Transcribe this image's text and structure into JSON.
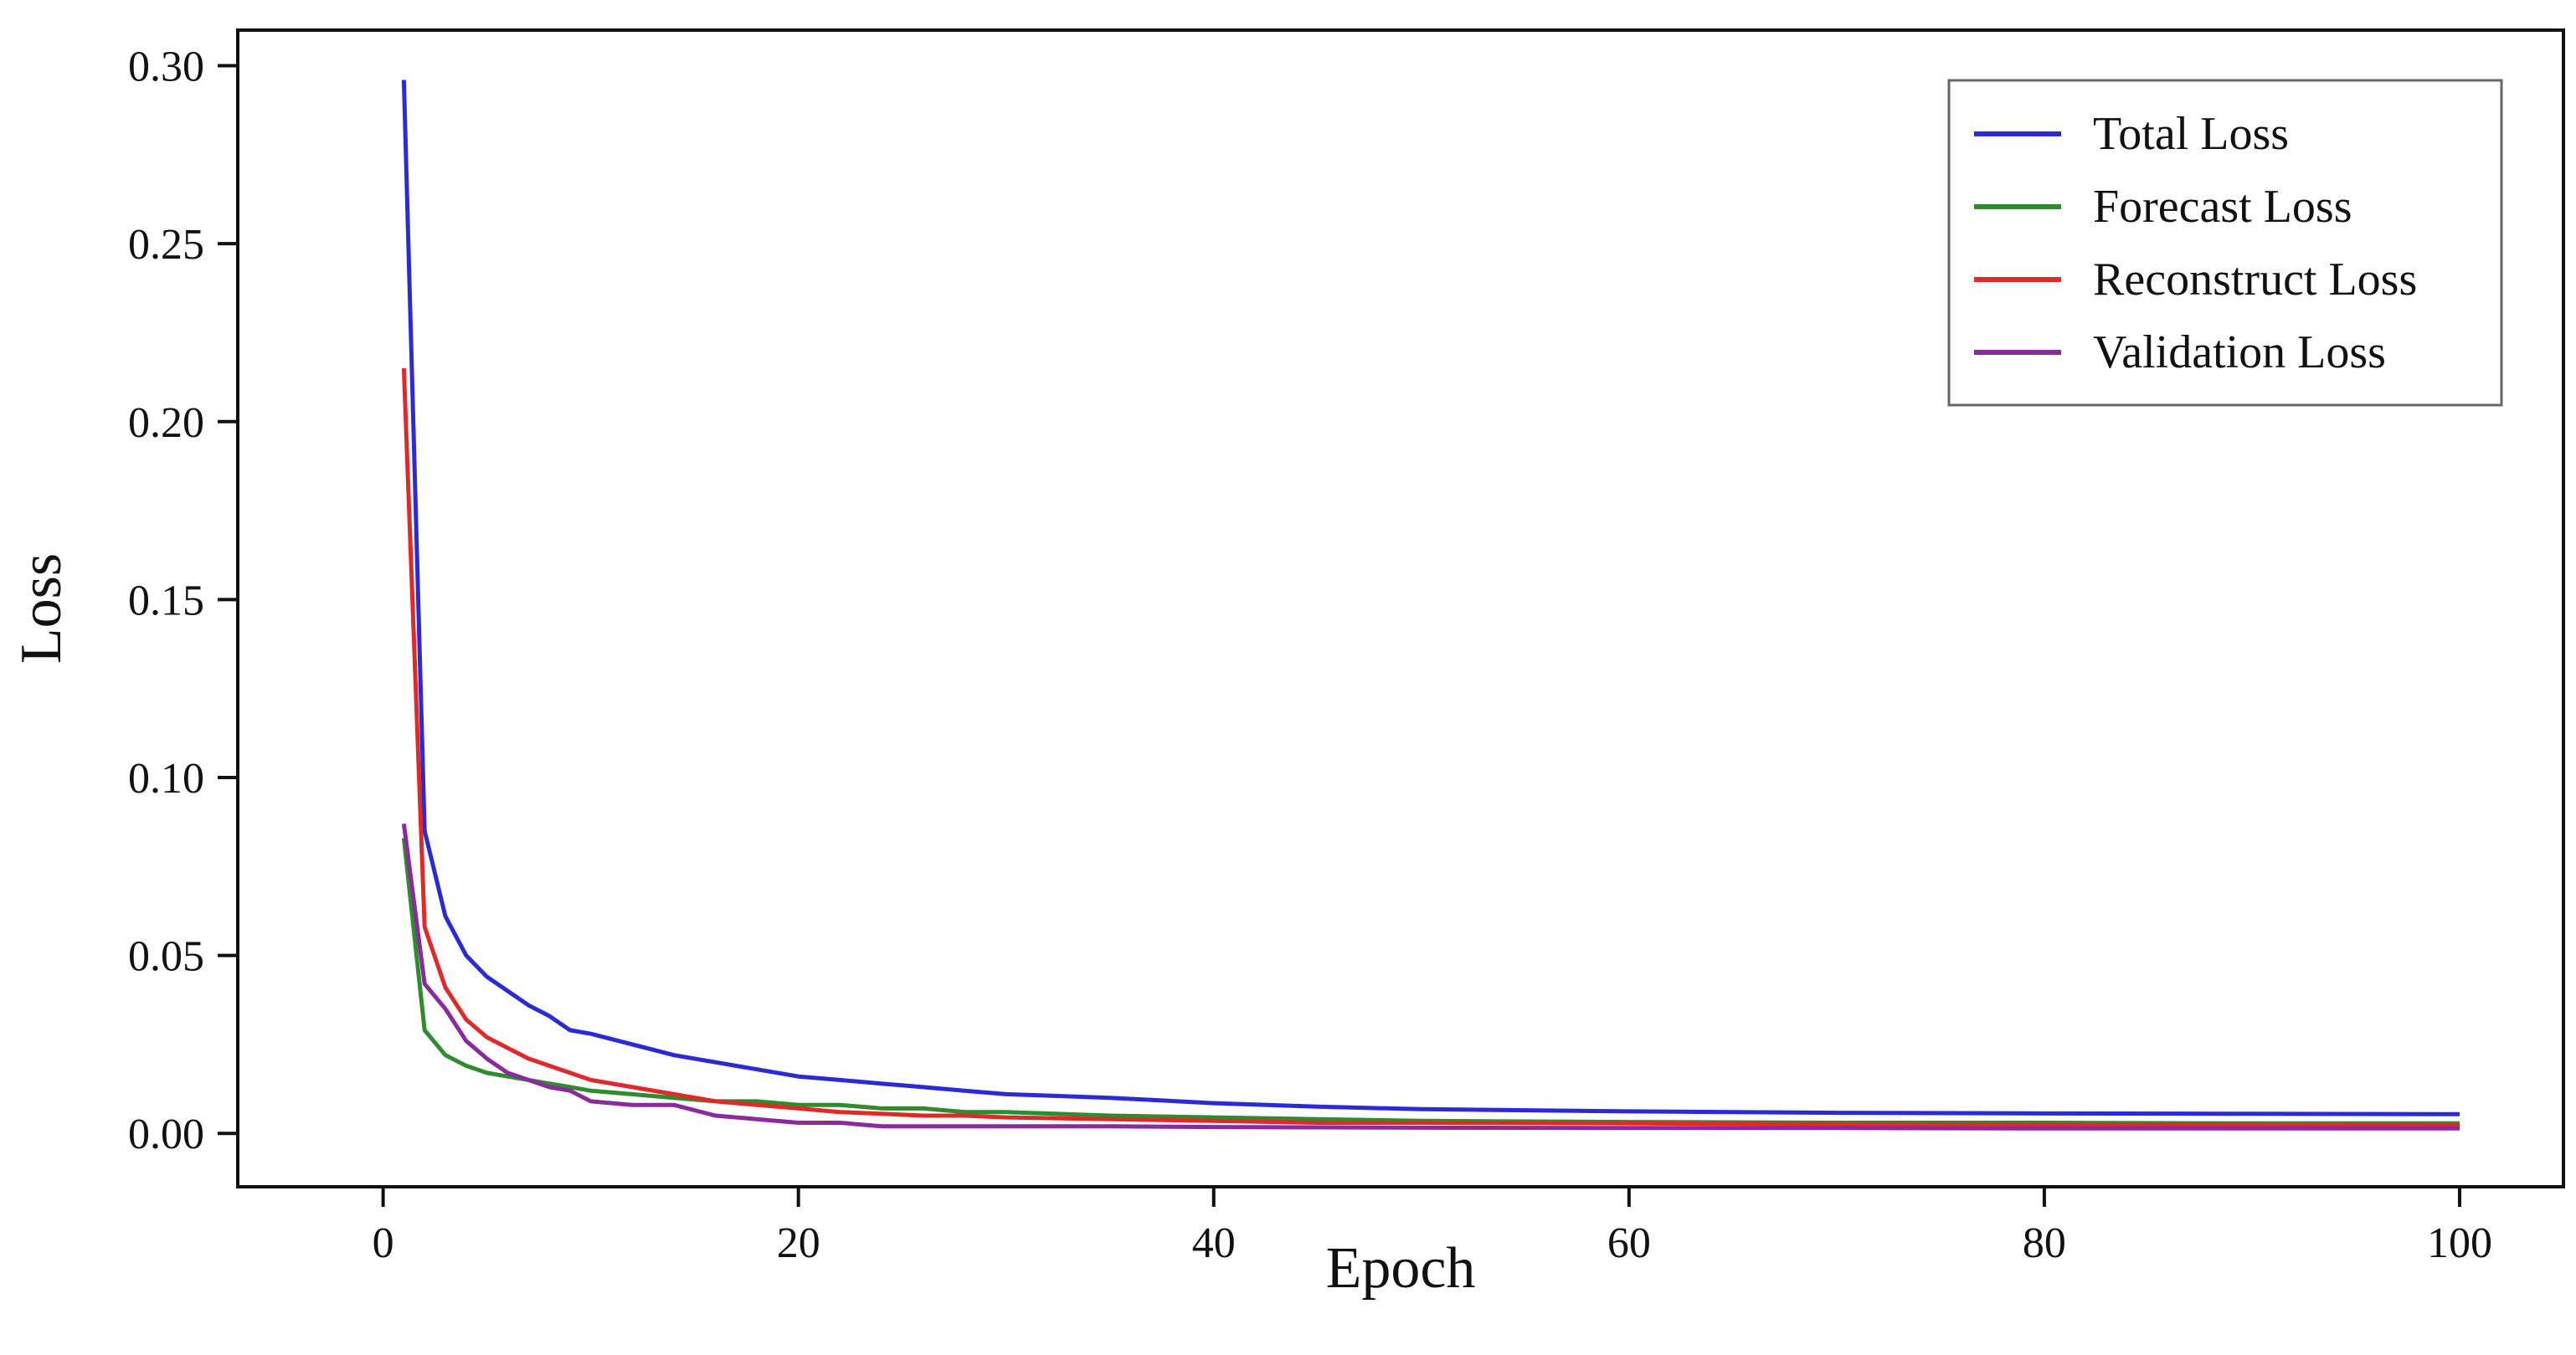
{
  "chart_data": {
    "type": "line",
    "xlabel": "Epoch",
    "ylabel": "Loss",
    "xlim": [
      -7,
      105
    ],
    "ylim": [
      -0.015,
      0.31
    ],
    "xticks": [
      0,
      20,
      40,
      60,
      80,
      100
    ],
    "yticks": [
      0.0,
      0.05,
      0.1,
      0.15,
      0.2,
      0.25,
      0.3
    ],
    "xtick_labels": [
      "0",
      "20",
      "40",
      "60",
      "80",
      "100"
    ],
    "ytick_labels": [
      "0.00",
      "0.05",
      "0.10",
      "0.15",
      "0.20",
      "0.25",
      "0.30"
    ],
    "grid": false,
    "legend_position": "top-right",
    "x": [
      1,
      2,
      3,
      4,
      5,
      6,
      7,
      8,
      9,
      10,
      12,
      14,
      16,
      18,
      20,
      22,
      24,
      26,
      28,
      30,
      35,
      40,
      45,
      50,
      60,
      70,
      80,
      90,
      100
    ],
    "series": [
      {
        "name": "Total Loss",
        "color": "#2b2bd6",
        "values": [
          0.296,
          0.085,
          0.061,
          0.05,
          0.044,
          0.04,
          0.036,
          0.033,
          0.029,
          0.028,
          0.025,
          0.022,
          0.02,
          0.018,
          0.016,
          0.015,
          0.014,
          0.013,
          0.012,
          0.011,
          0.01,
          0.0085,
          0.0075,
          0.0068,
          0.0062,
          0.0058,
          0.0056,
          0.0055,
          0.0054
        ]
      },
      {
        "name": "Forecast Loss",
        "color": "#2e8b2e",
        "values": [
          0.083,
          0.029,
          0.022,
          0.019,
          0.017,
          0.016,
          0.015,
          0.014,
          0.013,
          0.012,
          0.011,
          0.01,
          0.009,
          0.009,
          0.008,
          0.008,
          0.007,
          0.007,
          0.006,
          0.006,
          0.005,
          0.0045,
          0.004,
          0.0035,
          0.0032,
          0.003,
          0.003,
          0.0028,
          0.0028
        ]
      },
      {
        "name": "Reconstruct Loss",
        "color": "#e02a2a",
        "values": [
          0.215,
          0.058,
          0.041,
          0.032,
          0.027,
          0.024,
          0.021,
          0.019,
          0.017,
          0.015,
          0.013,
          0.011,
          0.009,
          0.008,
          0.007,
          0.006,
          0.0055,
          0.005,
          0.005,
          0.0045,
          0.004,
          0.0035,
          0.003,
          0.003,
          0.0028,
          0.0026,
          0.0025,
          0.0024,
          0.0023
        ]
      },
      {
        "name": "Validation Loss",
        "color": "#8b2a9e",
        "values": [
          0.087,
          0.042,
          0.035,
          0.026,
          0.021,
          0.017,
          0.015,
          0.013,
          0.012,
          0.009,
          0.008,
          0.008,
          0.005,
          0.004,
          0.003,
          0.003,
          0.002,
          0.002,
          0.002,
          0.002,
          0.002,
          0.0018,
          0.0017,
          0.0016,
          0.0015,
          0.0015,
          0.0014,
          0.0014,
          0.0014
        ]
      }
    ]
  }
}
